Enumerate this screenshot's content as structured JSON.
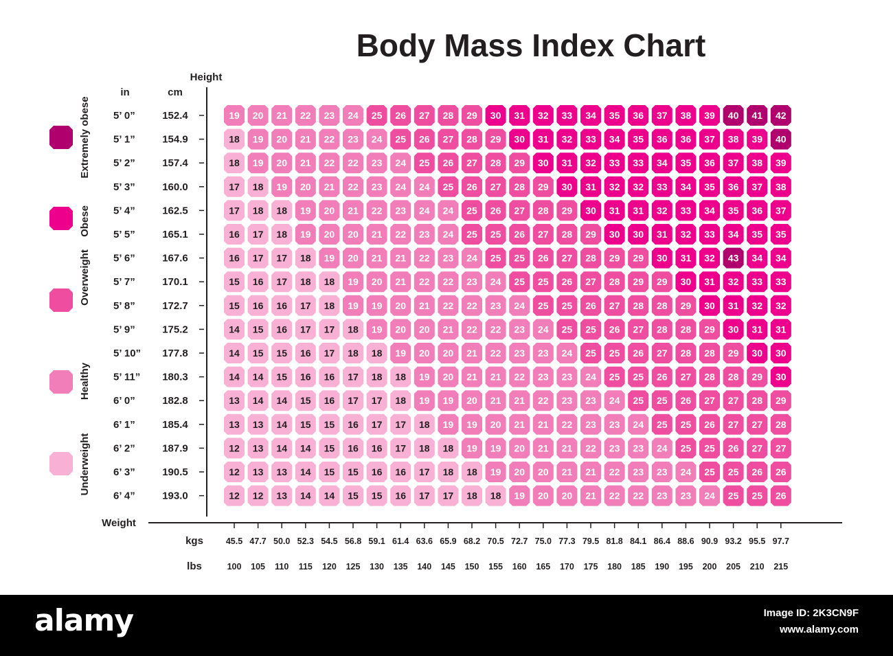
{
  "chart_data": {
    "type": "heatmap",
    "title": "Body Mass Index Chart",
    "height_label": "Height",
    "height_unit_in": "in",
    "height_unit_cm": "cm",
    "weight_label": "Weight",
    "weight_unit_kgs": "kgs",
    "weight_unit_lbs": "lbs",
    "heights_in": [
      "5’ 0”",
      "5’ 1”",
      "5’ 2”",
      "5’ 3”",
      "5’ 4”",
      "5’ 5”",
      "5’ 6”",
      "5’ 7”",
      "5’ 8”",
      "5’ 9”",
      "5’ 10”",
      "5’ 11”",
      "6’ 0”",
      "6’ 1”",
      "6’ 2”",
      "6’ 3”",
      "6’ 4”"
    ],
    "heights_cm": [
      "152.4",
      "154.9",
      "157.4",
      "160.0",
      "162.5",
      "165.1",
      "167.6",
      "170.1",
      "172.7",
      "175.2",
      "177.8",
      "180.3",
      "182.8",
      "185.4",
      "187.9",
      "190.5",
      "193.0"
    ],
    "weights_kgs": [
      "45.5",
      "47.7",
      "50.0",
      "52.3",
      "54.5",
      "56.8",
      "59.1",
      "61.4",
      "63.6",
      "65.9",
      "68.2",
      "70.5",
      "72.7",
      "75.0",
      "77.3",
      "79.5",
      "81.8",
      "84.1",
      "86.4",
      "88.6",
      "90.9",
      "93.2",
      "95.5",
      "97.7"
    ],
    "weights_lbs": [
      "100",
      "105",
      "110",
      "115",
      "120",
      "125",
      "130",
      "135",
      "140",
      "145",
      "150",
      "155",
      "160",
      "165",
      "170",
      "175",
      "180",
      "185",
      "190",
      "195",
      "200",
      "205",
      "210",
      "215"
    ],
    "legend": [
      {
        "name": "Extremely obese",
        "color": "#b0006e"
      },
      {
        "name": "Obese",
        "color": "#ec008c"
      },
      {
        "name": "Overweight",
        "color": "#ef4da0"
      },
      {
        "name": "Healthy",
        "color": "#f27eb9"
      },
      {
        "name": "Underweight",
        "color": "#f8b0d4"
      }
    ],
    "values": [
      [
        19,
        20,
        21,
        22,
        23,
        24,
        25,
        26,
        27,
        28,
        29,
        30,
        31,
        32,
        33,
        34,
        35,
        36,
        37,
        38,
        39,
        40,
        41,
        42
      ],
      [
        18,
        19,
        20,
        21,
        22,
        23,
        24,
        25,
        26,
        27,
        28,
        29,
        30,
        31,
        32,
        33,
        34,
        35,
        36,
        36,
        37,
        38,
        39,
        40
      ],
      [
        18,
        19,
        20,
        21,
        22,
        22,
        23,
        24,
        25,
        26,
        27,
        28,
        29,
        30,
        31,
        32,
        33,
        33,
        34,
        35,
        36,
        37,
        38,
        39
      ],
      [
        17,
        18,
        19,
        20,
        21,
        22,
        23,
        24,
        24,
        25,
        26,
        27,
        28,
        29,
        30,
        31,
        32,
        32,
        33,
        34,
        35,
        36,
        37,
        38
      ],
      [
        17,
        18,
        18,
        19,
        20,
        21,
        22,
        23,
        24,
        24,
        25,
        26,
        27,
        28,
        29,
        30,
        31,
        31,
        32,
        33,
        34,
        35,
        36,
        37
      ],
      [
        16,
        17,
        18,
        19,
        20,
        20,
        21,
        22,
        23,
        24,
        25,
        25,
        26,
        27,
        28,
        29,
        30,
        30,
        31,
        32,
        33,
        34,
        35,
        35
      ],
      [
        16,
        17,
        17,
        18,
        19,
        20,
        21,
        21,
        22,
        23,
        24,
        25,
        25,
        26,
        27,
        28,
        29,
        29,
        30,
        31,
        32,
        43,
        34,
        34
      ],
      [
        15,
        16,
        17,
        18,
        18,
        19,
        20,
        21,
        22,
        22,
        23,
        24,
        25,
        25,
        26,
        27,
        28,
        29,
        29,
        30,
        31,
        32,
        33,
        33
      ],
      [
        15,
        16,
        16,
        17,
        18,
        19,
        19,
        20,
        21,
        22,
        22,
        23,
        24,
        25,
        25,
        26,
        27,
        28,
        28,
        29,
        30,
        31,
        32,
        32
      ],
      [
        14,
        15,
        16,
        17,
        17,
        18,
        19,
        20,
        20,
        21,
        22,
        22,
        23,
        24,
        25,
        25,
        26,
        27,
        28,
        28,
        29,
        30,
        31,
        31
      ],
      [
        14,
        15,
        15,
        16,
        17,
        18,
        18,
        19,
        20,
        20,
        21,
        22,
        23,
        23,
        24,
        25,
        25,
        26,
        27,
        28,
        28,
        29,
        30,
        30
      ],
      [
        14,
        14,
        15,
        16,
        16,
        17,
        18,
        18,
        19,
        20,
        21,
        21,
        22,
        23,
        23,
        24,
        25,
        25,
        26,
        27,
        28,
        28,
        29,
        30
      ],
      [
        13,
        14,
        14,
        15,
        16,
        17,
        17,
        18,
        19,
        19,
        20,
        21,
        21,
        22,
        23,
        23,
        24,
        25,
        25,
        26,
        27,
        27,
        28,
        29
      ],
      [
        13,
        13,
        14,
        15,
        15,
        16,
        17,
        17,
        18,
        19,
        19,
        20,
        21,
        21,
        22,
        23,
        23,
        24,
        25,
        25,
        26,
        27,
        27,
        28
      ],
      [
        12,
        13,
        14,
        14,
        15,
        16,
        16,
        17,
        18,
        18,
        19,
        19,
        20,
        21,
        21,
        22,
        23,
        23,
        24,
        25,
        25,
        26,
        27,
        27
      ],
      [
        12,
        13,
        13,
        14,
        15,
        15,
        16,
        16,
        17,
        18,
        18,
        19,
        20,
        20,
        21,
        21,
        22,
        23,
        23,
        24,
        25,
        25,
        26,
        26
      ],
      [
        12,
        12,
        13,
        14,
        14,
        15,
        15,
        16,
        17,
        17,
        18,
        18,
        19,
        20,
        20,
        21,
        22,
        22,
        23,
        23,
        24,
        25,
        25,
        26
      ]
    ]
  },
  "footer": {
    "brand": "alamy",
    "image_id": "Image ID: 2K3CN9F",
    "url": "www.alamy.com"
  }
}
